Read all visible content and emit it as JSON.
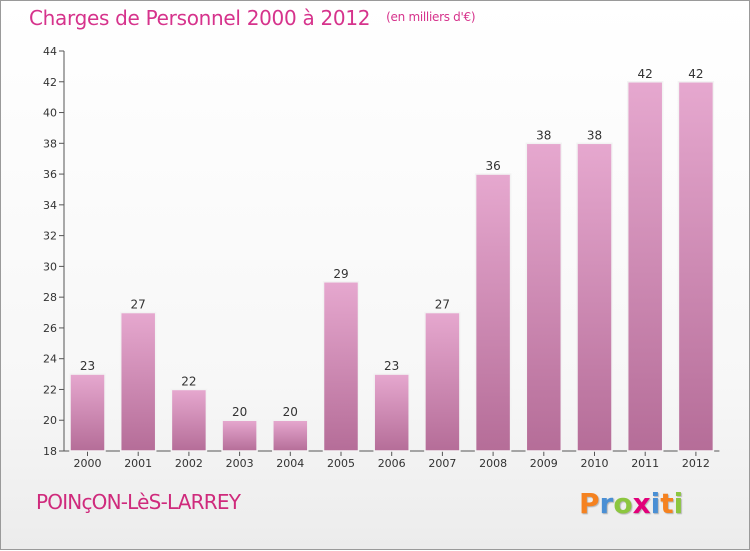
{
  "chart_data": {
    "type": "bar",
    "title": "Charges de Personnel 2000 à 2012",
    "subtitle": "(en milliers d'€)",
    "categories": [
      "2000",
      "2001",
      "2002",
      "2003",
      "2004",
      "2005",
      "2006",
      "2007",
      "2008",
      "2009",
      "2010",
      "2011",
      "2012"
    ],
    "values": [
      23,
      27,
      22,
      20,
      20,
      29,
      23,
      27,
      36,
      38,
      38,
      42,
      42
    ],
    "ylim": [
      18,
      44
    ],
    "yticks": [
      18,
      20,
      22,
      24,
      26,
      28,
      30,
      32,
      34,
      36,
      38,
      40,
      42,
      44
    ],
    "grid": false,
    "bar_color": "#d490bb"
  },
  "footer": {
    "commune": "POINçON-LèS-LARREY",
    "logo_letters": [
      "P",
      "r",
      "o",
      "x",
      "i",
      "t",
      "i"
    ],
    "logo_colors": [
      "#f58220",
      "#4a8fd4",
      "#8cc63f",
      "#e2007a",
      "#4a8fd4",
      "#f58220",
      "#8cc63f"
    ]
  }
}
